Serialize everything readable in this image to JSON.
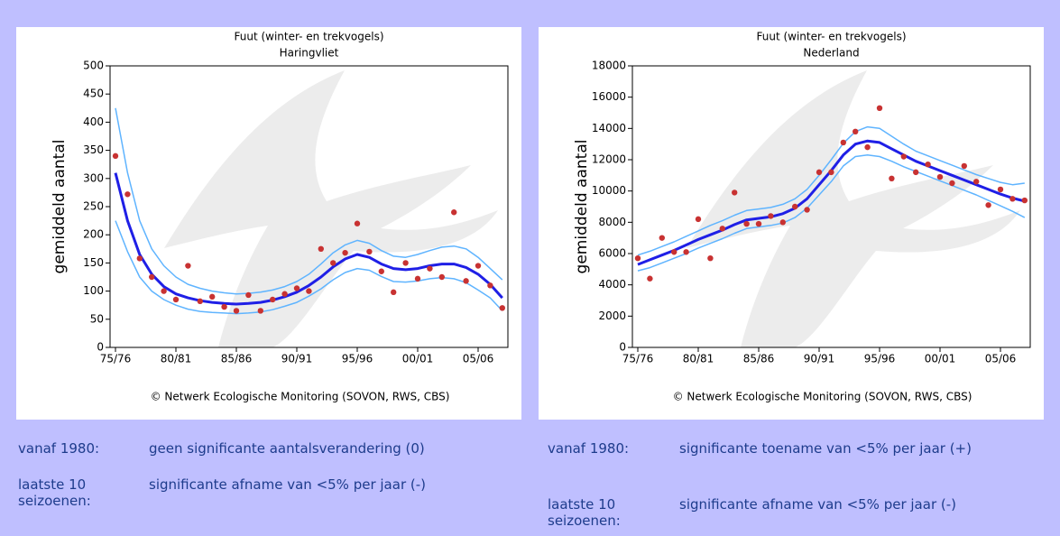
{
  "chart_data": [
    {
      "type": "line",
      "title": "Fuut (winter- en trekvogels)",
      "subtitle": "Haringvliet",
      "ylabel": "gemiddeld aantal",
      "annotation": "© Netwerk Ecologische Monitoring (SOVON, RWS, CBS)",
      "categories": [
        "75/76",
        null,
        null,
        null,
        null,
        "80/81",
        null,
        null,
        null,
        null,
        "85/86",
        null,
        null,
        null,
        null,
        "90/91",
        null,
        null,
        null,
        null,
        "95/96",
        null,
        null,
        null,
        null,
        "00/01",
        null,
        null,
        null,
        null,
        "05/06",
        null,
        null
      ],
      "ylim": [
        0,
        500
      ],
      "yticks": [
        0,
        50,
        100,
        150,
        200,
        250,
        300,
        350,
        400,
        450,
        500
      ],
      "series": [
        {
          "color": "#5fb4ff",
          "kind": "line",
          "values": [
            425,
            310,
            225,
            175,
            145,
            125,
            112,
            105,
            100,
            97,
            95,
            96,
            98,
            102,
            108,
            117,
            130,
            148,
            168,
            182,
            190,
            185,
            172,
            162,
            160,
            165,
            172,
            178,
            180,
            175,
            160,
            140,
            120
          ]
        },
        {
          "color": "#5fb4ff",
          "kind": "line",
          "values": [
            225,
            170,
            125,
            100,
            85,
            75,
            68,
            64,
            62,
            61,
            60,
            61,
            63,
            67,
            73,
            80,
            91,
            104,
            120,
            133,
            140,
            137,
            126,
            117,
            116,
            118,
            122,
            124,
            122,
            115,
            102,
            88,
            65
          ]
        },
        {
          "color": "#1f1fe6",
          "kind": "trend",
          "values": [
            310,
            225,
            165,
            130,
            108,
            95,
            88,
            83,
            80,
            78,
            77,
            78,
            80,
            84,
            90,
            98,
            110,
            125,
            143,
            157,
            165,
            160,
            148,
            140,
            138,
            140,
            145,
            148,
            148,
            142,
            130,
            112,
            88
          ]
        },
        {
          "color": "#c83232",
          "kind": "scatter",
          "values": [
            340,
            272,
            158,
            125,
            100,
            85,
            145,
            82,
            90,
            72,
            65,
            93,
            65,
            85,
            95,
            105,
            100,
            175,
            150,
            168,
            220,
            170,
            135,
            98,
            150,
            122,
            140,
            125,
            240,
            118,
            145,
            110,
            70
          ]
        }
      ]
    },
    {
      "type": "line",
      "title": "Fuut (winter- en trekvogels)",
      "subtitle": "Nederland",
      "ylabel": "gemiddeld aantal",
      "annotation": "© Netwerk Ecologische Monitoring (SOVON, RWS, CBS)",
      "categories": [
        "75/76",
        null,
        null,
        null,
        null,
        "80/81",
        null,
        null,
        null,
        null,
        "85/86",
        null,
        null,
        null,
        null,
        "90/91",
        null,
        null,
        null,
        null,
        "95/96",
        null,
        null,
        null,
        null,
        "00/01",
        null,
        null,
        null,
        null,
        "05/06",
        null,
        null
      ],
      "ylim": [
        0,
        18000
      ],
      "yticks": [
        0,
        2000,
        4000,
        6000,
        8000,
        10000,
        12000,
        14000,
        16000,
        18000
      ],
      "series": [
        {
          "color": "#5fb4ff",
          "kind": "line",
          "values": [
            5900,
            6150,
            6450,
            6750,
            7100,
            7450,
            7800,
            8100,
            8450,
            8750,
            8850,
            8950,
            9150,
            9500,
            10100,
            11000,
            12000,
            13050,
            13800,
            14100,
            14000,
            13500,
            13000,
            12550,
            12250,
            11950,
            11650,
            11350,
            11050,
            10800,
            10550,
            10400,
            10500
          ]
        },
        {
          "color": "#5fb4ff",
          "kind": "line",
          "values": [
            4900,
            5100,
            5400,
            5700,
            6000,
            6350,
            6650,
            6950,
            7300,
            7600,
            7700,
            7800,
            7950,
            8300,
            8900,
            9750,
            10600,
            11600,
            12200,
            12300,
            12200,
            11900,
            11550,
            11250,
            10950,
            10650,
            10350,
            10050,
            9750,
            9400,
            9050,
            8700,
            8300
          ]
        },
        {
          "color": "#1f1fe6",
          "kind": "trend",
          "values": [
            5300,
            5600,
            5900,
            6200,
            6550,
            6900,
            7200,
            7500,
            7850,
            8150,
            8250,
            8350,
            8550,
            8900,
            9500,
            10400,
            11300,
            12300,
            13000,
            13200,
            13100,
            12700,
            12300,
            11900,
            11600,
            11300,
            11000,
            10700,
            10400,
            10100,
            9800,
            9550,
            9350
          ]
        },
        {
          "color": "#c83232",
          "kind": "scatter",
          "values": [
            5700,
            4400,
            7000,
            6100,
            6100,
            8200,
            5700,
            7600,
            9900,
            7900,
            7900,
            8400,
            8000,
            9000,
            8800,
            11200,
            11200,
            13100,
            13800,
            12800,
            15300,
            10800,
            12200,
            11200,
            11700,
            10900,
            10500,
            11600,
            10600,
            9100,
            10100,
            9500,
            9400
          ]
        }
      ]
    }
  ],
  "notes": [
    [
      {
        "label": "vanaf 1980:",
        "text": "geen significante aantalsverandering (0)"
      },
      {
        "label": "laatste 10 seizoenen:",
        "text": "significante afname van <5% per jaar (-)"
      }
    ],
    [
      {
        "label": "vanaf 1980:",
        "text": "significante toename van <5% per jaar (+)"
      },
      {
        "label": "laatste 10 seizoenen:",
        "text": "significante afname van <5% per jaar (-)"
      }
    ]
  ]
}
